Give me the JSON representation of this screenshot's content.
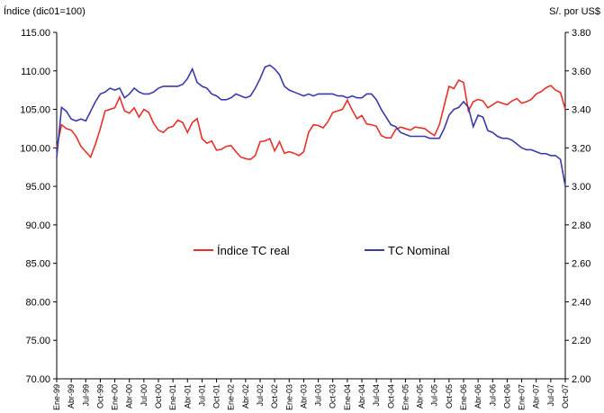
{
  "chart_data": {
    "type": "line",
    "y_label": "Índice (dic01=100)",
    "y2_label": "S/. por US$",
    "categories": [
      "Ene-99",
      null,
      null,
      "Abr-99",
      null,
      null,
      "Jul-99",
      null,
      null,
      "Oct-99",
      null,
      null,
      "Ene-00",
      null,
      null,
      "Abr-00",
      null,
      null,
      "Jul-00",
      null,
      null,
      "Oct-00",
      null,
      null,
      "Ene-01",
      null,
      null,
      "Abr-01",
      null,
      null,
      "Jul-01",
      null,
      null,
      "Oct-01",
      null,
      null,
      "Ene-02",
      null,
      null,
      "Abr-02",
      null,
      null,
      "Jul-02",
      null,
      null,
      "Oct-02",
      null,
      null,
      "Ene-03",
      null,
      null,
      "Abr-03",
      null,
      null,
      "Jul-03",
      null,
      null,
      "Oct-03",
      null,
      null,
      "Ene-04",
      null,
      null,
      "Abr-04",
      null,
      null,
      "Jul-04",
      null,
      null,
      "Oct-04",
      null,
      null,
      "Ene-05",
      null,
      null,
      "Abr-05",
      null,
      null,
      "Jul-05",
      null,
      null,
      "Oct-05",
      null,
      null,
      "Ene-06",
      null,
      null,
      "Abr-06",
      null,
      null,
      "Jul-06",
      null,
      null,
      "Oct-06",
      null,
      null,
      "Ene-07",
      null,
      null,
      "Abr-07",
      null,
      null,
      "Jul-07",
      null,
      null,
      "Oct-07"
    ],
    "series": [
      {
        "name": "Índice TC real",
        "color": "#e8302a",
        "axis": "y",
        "values": [
          100,
          103,
          102.5,
          102.3,
          101.5,
          100.2,
          99.5,
          98.8,
          100.5,
          102.5,
          104.8,
          105,
          105.2,
          106.6,
          104.8,
          104.5,
          105.2,
          104,
          105,
          104.6,
          103.2,
          102.3,
          102,
          102.6,
          102.8,
          103.6,
          103.3,
          102,
          103.3,
          103.8,
          101.2,
          100.6,
          100.9,
          99.7,
          99.8,
          100.2,
          100.3,
          99.5,
          98.8,
          98.6,
          98.5,
          99,
          100.8,
          100.9,
          101.2,
          99.6,
          100.8,
          99.3,
          99.5,
          99.3,
          99,
          99.5,
          102,
          103,
          102.9,
          102.6,
          103.4,
          104.6,
          104.8,
          105,
          106.2,
          104.9,
          103.8,
          104.2,
          103.1,
          103,
          102.8,
          101.6,
          101.3,
          101.3,
          102.4,
          102.7,
          102.5,
          102.3,
          102.7,
          102.6,
          102.5,
          102,
          101.6,
          103,
          105.5,
          108,
          107.7,
          108.8,
          108.5,
          104.8,
          106,
          106.3,
          106.1,
          105.2,
          105.6,
          106,
          105.8,
          105.6,
          106.1,
          106.4,
          105.8,
          106,
          106.3,
          107,
          107.3,
          107.8,
          108.1,
          107.5,
          107.2,
          105
        ]
      },
      {
        "name": "TC Nominal",
        "color": "#3a3aa8",
        "axis": "y2",
        "values": [
          3.15,
          3.41,
          3.39,
          3.35,
          3.34,
          3.35,
          3.34,
          3.39,
          3.44,
          3.48,
          3.49,
          3.51,
          3.5,
          3.51,
          3.46,
          3.48,
          3.51,
          3.49,
          3.48,
          3.48,
          3.49,
          3.51,
          3.52,
          3.52,
          3.52,
          3.52,
          3.53,
          3.56,
          3.61,
          3.54,
          3.52,
          3.51,
          3.48,
          3.47,
          3.45,
          3.45,
          3.46,
          3.48,
          3.47,
          3.46,
          3.47,
          3.51,
          3.56,
          3.62,
          3.63,
          3.61,
          3.58,
          3.52,
          3.5,
          3.49,
          3.48,
          3.47,
          3.48,
          3.47,
          3.48,
          3.48,
          3.48,
          3.48,
          3.47,
          3.47,
          3.46,
          3.47,
          3.46,
          3.46,
          3.48,
          3.48,
          3.45,
          3.4,
          3.36,
          3.32,
          3.31,
          3.28,
          3.27,
          3.26,
          3.26,
          3.26,
          3.26,
          3.25,
          3.25,
          3.25,
          3.3,
          3.37,
          3.4,
          3.41,
          3.44,
          3.41,
          3.31,
          3.37,
          3.36,
          3.29,
          3.28,
          3.26,
          3.25,
          3.25,
          3.24,
          3.22,
          3.2,
          3.19,
          3.19,
          3.18,
          3.17,
          3.17,
          3.16,
          3.16,
          3.14,
          3
        ]
      }
    ],
    "ylim": [
      70,
      115
    ],
    "yticks": [
      {
        "value": 70,
        "label": "70.00"
      },
      {
        "value": 75,
        "label": "75.00"
      },
      {
        "value": 80,
        "label": "80.00"
      },
      {
        "value": 85,
        "label": "85.00"
      },
      {
        "value": 90,
        "label": "90.00"
      },
      {
        "value": 95,
        "label": "95.00"
      },
      {
        "value": 100,
        "label": "100.00"
      },
      {
        "value": 105,
        "label": "105.00"
      },
      {
        "value": 110,
        "label": "110.00"
      },
      {
        "value": 115,
        "label": "115.00"
      }
    ],
    "y2lim": [
      2,
      3.8
    ],
    "y2ticks": [
      {
        "value": 2,
        "label": "2.00"
      },
      {
        "value": 2.2,
        "label": "2.20"
      },
      {
        "value": 2.4,
        "label": "2.40"
      },
      {
        "value": 2.6,
        "label": "2.60"
      },
      {
        "value": 2.8,
        "label": "2.80"
      },
      {
        "value": 3,
        "label": "3.00"
      },
      {
        "value": 3.2,
        "label": "3.20"
      },
      {
        "value": 3.4,
        "label": "3.40"
      },
      {
        "value": 3.6,
        "label": "3.60"
      },
      {
        "value": 3.8,
        "label": "3.80"
      }
    ],
    "grid": false,
    "legend": "center"
  }
}
